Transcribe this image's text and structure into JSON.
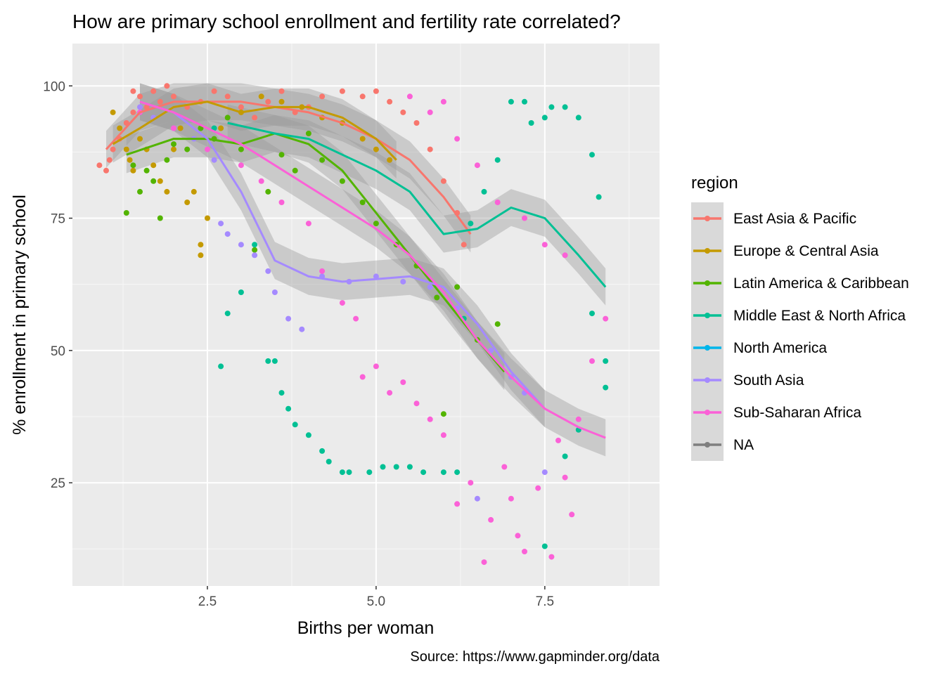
{
  "chart_data": {
    "type": "scatter",
    "title": "How are primary school enrollment and fertility rate correlated?",
    "xlabel": "Births per woman",
    "ylabel": "% enrollment in primary school",
    "caption": "Source: https://www.gapminder.org/data",
    "xlim": [
      0.5,
      9.2
    ],
    "ylim": [
      5.5,
      108
    ],
    "xticks": [
      2.5,
      5.0,
      7.5
    ],
    "xtick_labels": [
      "2.5",
      "5.0",
      "7.5"
    ],
    "yticks": [
      25,
      50,
      75,
      100
    ],
    "ytick_labels": [
      "25",
      "50",
      "75",
      "100"
    ],
    "grid": true,
    "smoother": "loess with 95% confidence band per region",
    "legend": {
      "title": "region",
      "position": "right",
      "entries": [
        "East Asia & Pacific",
        "Europe & Central Asia",
        "Latin America & Caribbean",
        "Middle East & North Africa",
        "North America",
        "South Asia",
        "Sub-Saharan Africa",
        "NA"
      ]
    },
    "series": [
      {
        "name": "East Asia & Pacific",
        "color": "#F8766D",
        "points": [
          [
            0.9,
            85
          ],
          [
            1.0,
            84
          ],
          [
            1.05,
            86
          ],
          [
            1.1,
            88
          ],
          [
            1.2,
            90
          ],
          [
            1.3,
            93
          ],
          [
            1.4,
            95
          ],
          [
            1.4,
            99
          ],
          [
            1.5,
            98
          ],
          [
            1.6,
            96
          ],
          [
            1.7,
            99
          ],
          [
            1.8,
            97
          ],
          [
            1.9,
            100
          ],
          [
            2.0,
            98
          ],
          [
            2.2,
            96
          ],
          [
            2.4,
            97
          ],
          [
            2.6,
            99
          ],
          [
            2.8,
            98
          ],
          [
            3.0,
            96
          ],
          [
            3.2,
            94
          ],
          [
            3.4,
            97
          ],
          [
            3.6,
            99
          ],
          [
            3.8,
            95
          ],
          [
            4.0,
            96
          ],
          [
            4.2,
            98
          ],
          [
            4.5,
            99
          ],
          [
            4.8,
            98
          ],
          [
            5.0,
            99
          ],
          [
            5.2,
            97
          ],
          [
            5.4,
            95
          ],
          [
            5.6,
            93
          ],
          [
            5.8,
            88
          ],
          [
            6.0,
            82
          ],
          [
            6.2,
            76
          ],
          [
            6.3,
            70
          ]
        ],
        "trend": [
          [
            1.0,
            88
          ],
          [
            1.5,
            95
          ],
          [
            2.0,
            97
          ],
          [
            2.5,
            97
          ],
          [
            3.0,
            97
          ],
          [
            3.5,
            96
          ],
          [
            4.0,
            95
          ],
          [
            4.5,
            93
          ],
          [
            5.0,
            90
          ],
          [
            5.5,
            86
          ],
          [
            6.0,
            79
          ],
          [
            6.4,
            72
          ]
        ]
      },
      {
        "name": "Europe & Central Asia",
        "color": "#C49A00",
        "points": [
          [
            1.1,
            95
          ],
          [
            1.2,
            92
          ],
          [
            1.3,
            88
          ],
          [
            1.35,
            86
          ],
          [
            1.4,
            84
          ],
          [
            1.5,
            90
          ],
          [
            1.6,
            88
          ],
          [
            1.7,
            85
          ],
          [
            1.8,
            82
          ],
          [
            1.9,
            80
          ],
          [
            2.0,
            88
          ],
          [
            2.1,
            92
          ],
          [
            2.2,
            78
          ],
          [
            2.3,
            80
          ],
          [
            2.4,
            70
          ],
          [
            2.4,
            68
          ],
          [
            2.5,
            75
          ],
          [
            2.7,
            92
          ],
          [
            3.0,
            95
          ],
          [
            3.3,
            98
          ],
          [
            3.6,
            97
          ],
          [
            3.9,
            96
          ],
          [
            4.2,
            94
          ],
          [
            4.5,
            93
          ],
          [
            4.8,
            90
          ],
          [
            5.0,
            88
          ],
          [
            5.2,
            86
          ]
        ],
        "trend": [
          [
            1.1,
            89
          ],
          [
            1.5,
            92
          ],
          [
            2.0,
            96
          ],
          [
            2.5,
            97
          ],
          [
            3.0,
            95
          ],
          [
            3.5,
            96
          ],
          [
            4.0,
            96
          ],
          [
            4.5,
            94
          ],
          [
            5.0,
            90
          ],
          [
            5.3,
            86
          ]
        ]
      },
      {
        "name": "Latin America & Caribbean",
        "color": "#53B400",
        "points": [
          [
            1.3,
            76
          ],
          [
            1.4,
            85
          ],
          [
            1.5,
            80
          ],
          [
            1.6,
            84
          ],
          [
            1.7,
            82
          ],
          [
            1.8,
            75
          ],
          [
            1.9,
            86
          ],
          [
            2.0,
            89
          ],
          [
            2.2,
            88
          ],
          [
            2.4,
            92
          ],
          [
            2.6,
            90
          ],
          [
            2.8,
            94
          ],
          [
            3.0,
            88
          ],
          [
            3.2,
            69
          ],
          [
            3.4,
            80
          ],
          [
            3.6,
            87
          ],
          [
            3.8,
            84
          ],
          [
            4.0,
            91
          ],
          [
            4.2,
            86
          ],
          [
            4.5,
            82
          ],
          [
            4.8,
            78
          ],
          [
            5.0,
            74
          ],
          [
            5.3,
            70
          ],
          [
            5.6,
            66
          ],
          [
            5.9,
            60
          ],
          [
            6.0,
            38
          ],
          [
            6.2,
            62
          ],
          [
            6.5,
            52
          ],
          [
            6.8,
            55
          ]
        ],
        "trend": [
          [
            1.3,
            87
          ],
          [
            2.0,
            90
          ],
          [
            2.5,
            90
          ],
          [
            3.0,
            89
          ],
          [
            3.5,
            91
          ],
          [
            4.0,
            89
          ],
          [
            4.5,
            84
          ],
          [
            5.0,
            76
          ],
          [
            5.5,
            68
          ],
          [
            6.0,
            60
          ],
          [
            6.5,
            52
          ],
          [
            6.9,
            46
          ]
        ]
      },
      {
        "name": "Middle East & North Africa",
        "color": "#00C094",
        "points": [
          [
            2.6,
            92
          ],
          [
            2.7,
            47
          ],
          [
            2.8,
            57
          ],
          [
            3.0,
            61
          ],
          [
            3.2,
            70
          ],
          [
            3.4,
            48
          ],
          [
            3.5,
            48
          ],
          [
            3.6,
            42
          ],
          [
            3.7,
            39
          ],
          [
            3.8,
            36
          ],
          [
            4.0,
            34
          ],
          [
            4.2,
            31
          ],
          [
            4.3,
            29
          ],
          [
            4.5,
            27
          ],
          [
            4.6,
            27
          ],
          [
            4.9,
            27
          ],
          [
            5.1,
            28
          ],
          [
            5.3,
            28
          ],
          [
            5.5,
            28
          ],
          [
            5.7,
            27
          ],
          [
            6.0,
            27
          ],
          [
            6.2,
            27
          ],
          [
            6.3,
            56
          ],
          [
            6.4,
            74
          ],
          [
            6.6,
            80
          ],
          [
            6.8,
            86
          ],
          [
            7.0,
            97
          ],
          [
            7.2,
            97
          ],
          [
            7.3,
            93
          ],
          [
            7.5,
            94
          ],
          [
            7.6,
            96
          ],
          [
            7.8,
            96
          ],
          [
            8.0,
            94
          ],
          [
            8.2,
            87
          ],
          [
            8.3,
            79
          ],
          [
            8.2,
            57
          ],
          [
            8.4,
            48
          ],
          [
            8.4,
            43
          ],
          [
            7.5,
            13
          ],
          [
            7.8,
            30
          ],
          [
            8.0,
            35
          ]
        ],
        "trend": [
          [
            2.8,
            93
          ],
          [
            3.5,
            91
          ],
          [
            4.0,
            90
          ],
          [
            4.5,
            87
          ],
          [
            5.0,
            84
          ],
          [
            5.5,
            80
          ],
          [
            6.0,
            72
          ],
          [
            6.5,
            73
          ],
          [
            7.0,
            77
          ],
          [
            7.5,
            75
          ],
          [
            8.0,
            68
          ],
          [
            8.4,
            62
          ]
        ]
      },
      {
        "name": "South Asia",
        "color": "#A58AFF",
        "points": [
          [
            1.5,
            96
          ],
          [
            1.7,
            94
          ],
          [
            2.0,
            92
          ],
          [
            2.3,
            90
          ],
          [
            2.6,
            86
          ],
          [
            2.7,
            74
          ],
          [
            2.8,
            72
          ],
          [
            3.0,
            70
          ],
          [
            3.2,
            68
          ],
          [
            3.4,
            65
          ],
          [
            3.5,
            61
          ],
          [
            3.7,
            56
          ],
          [
            3.9,
            54
          ],
          [
            4.2,
            64
          ],
          [
            4.6,
            63
          ],
          [
            5.0,
            64
          ],
          [
            5.4,
            63
          ],
          [
            5.8,
            62
          ],
          [
            6.2,
            58
          ],
          [
            6.5,
            22
          ],
          [
            6.7,
            50
          ],
          [
            7.0,
            45
          ],
          [
            7.2,
            42
          ],
          [
            7.5,
            27
          ]
        ],
        "trend": [
          [
            1.5,
            97
          ],
          [
            2.0,
            95
          ],
          [
            2.5,
            90
          ],
          [
            3.0,
            80
          ],
          [
            3.5,
            67
          ],
          [
            4.0,
            64
          ],
          [
            4.5,
            63
          ],
          [
            5.0,
            63.5
          ],
          [
            5.5,
            64
          ],
          [
            6.0,
            62
          ],
          [
            6.5,
            55
          ],
          [
            7.0,
            46
          ],
          [
            7.5,
            39
          ]
        ]
      },
      {
        "name": "Sub-Saharan Africa",
        "color": "#FB61D7",
        "points": [
          [
            1.5,
            95
          ],
          [
            2.0,
            92
          ],
          [
            2.5,
            88
          ],
          [
            3.0,
            85
          ],
          [
            3.3,
            82
          ],
          [
            3.6,
            78
          ],
          [
            4.0,
            74
          ],
          [
            4.2,
            65
          ],
          [
            4.5,
            59
          ],
          [
            4.7,
            56
          ],
          [
            4.8,
            45
          ],
          [
            5.0,
            47
          ],
          [
            5.2,
            42
          ],
          [
            5.4,
            44
          ],
          [
            5.6,
            40
          ],
          [
            5.8,
            37
          ],
          [
            6.0,
            34
          ],
          [
            6.2,
            21
          ],
          [
            6.4,
            25
          ],
          [
            6.6,
            10
          ],
          [
            6.7,
            18
          ],
          [
            6.9,
            28
          ],
          [
            7.0,
            22
          ],
          [
            7.1,
            15
          ],
          [
            7.2,
            12
          ],
          [
            7.4,
            24
          ],
          [
            7.6,
            11
          ],
          [
            7.7,
            33
          ],
          [
            7.8,
            26
          ],
          [
            7.9,
            19
          ],
          [
            8.0,
            37
          ],
          [
            8.2,
            48
          ],
          [
            8.4,
            56
          ],
          [
            5.5,
            98
          ],
          [
            5.8,
            95
          ],
          [
            6.0,
            97
          ],
          [
            6.2,
            90
          ],
          [
            6.5,
            85
          ],
          [
            6.8,
            78
          ],
          [
            7.2,
            75
          ],
          [
            7.5,
            70
          ],
          [
            7.8,
            68
          ]
        ],
        "trend": [
          [
            1.5,
            97
          ],
          [
            2.0,
            95
          ],
          [
            2.5,
            92
          ],
          [
            3.0,
            89
          ],
          [
            3.5,
            85
          ],
          [
            4.0,
            81
          ],
          [
            4.5,
            77
          ],
          [
            5.0,
            73
          ],
          [
            5.5,
            68
          ],
          [
            6.0,
            61
          ],
          [
            6.5,
            52
          ],
          [
            7.0,
            45
          ],
          [
            7.5,
            39
          ],
          [
            8.0,
            35.5
          ],
          [
            8.4,
            33.5
          ]
        ]
      }
    ]
  }
}
